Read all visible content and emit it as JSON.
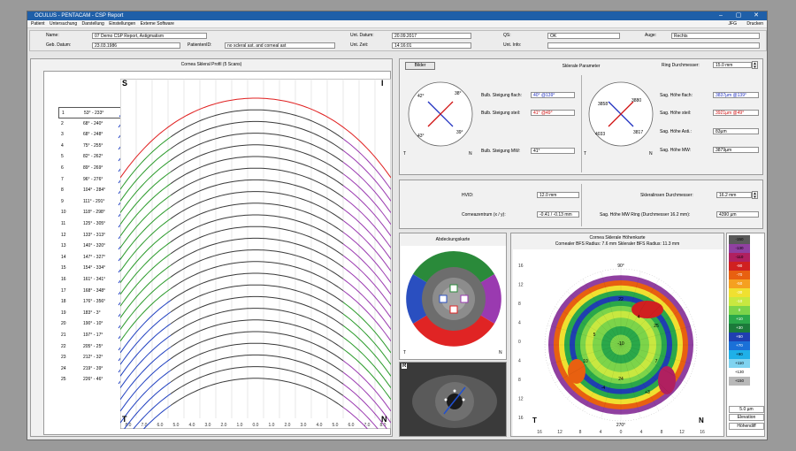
{
  "title": "OCULUS - PENTACAM - CSP Report",
  "menu": [
    "Patient",
    "Untersuchung",
    "Darstellung",
    "Einstellungen",
    "Externe Software"
  ],
  "menu_right": [
    "JFG",
    "Drucken"
  ],
  "patient": {
    "name_label": "Name:",
    "name": "07 Demo CSP Report, Astigmatism",
    "dob_label": "Geb. Datum:",
    "dob": "23.03.1986",
    "pid_label": "PatientenID:",
    "pid": "no scleral ast. and corneal ast",
    "date_label": "Unt. Datum:",
    "date": "20.09.2017",
    "time_label": "Unt. Zeit:",
    "time": "14:16:01",
    "qs_label": "QS:",
    "qs": "OK",
    "info_label": "Unt. Info:",
    "info": "",
    "eye_label": "Auge:",
    "eye": "Rechts"
  },
  "profile": {
    "title": "Cornea Skleral Profil (5 Scans)",
    "corner_tl": "S",
    "corner_tr": "I",
    "corner_bl": "T",
    "corner_br": "N",
    "scans": [
      {
        "n": "1",
        "a": "53° - 233°"
      },
      {
        "n": "2",
        "a": "68° - 240°"
      },
      {
        "n": "3",
        "a": "68° - 248°"
      },
      {
        "n": "4",
        "a": "75° - 255°"
      },
      {
        "n": "5",
        "a": "82° - 262°"
      },
      {
        "n": "6",
        "a": "89° - 269°"
      },
      {
        "n": "7",
        "a": "96° - 276°"
      },
      {
        "n": "8",
        "a": "104° - 284°"
      },
      {
        "n": "9",
        "a": "111° - 291°"
      },
      {
        "n": "10",
        "a": "118° - 298°"
      },
      {
        "n": "11",
        "a": "125° - 305°"
      },
      {
        "n": "12",
        "a": "133° - 313°"
      },
      {
        "n": "13",
        "a": "140° - 320°"
      },
      {
        "n": "14",
        "a": "147° - 327°"
      },
      {
        "n": "15",
        "a": "154° - 334°"
      },
      {
        "n": "16",
        "a": "161° - 341°"
      },
      {
        "n": "17",
        "a": "168° - 348°"
      },
      {
        "n": "18",
        "a": "176° - 356°"
      },
      {
        "n": "19",
        "a": "183° - 3°"
      },
      {
        "n": "20",
        "a": "190° - 10°"
      },
      {
        "n": "21",
        "a": "197° - 17°"
      },
      {
        "n": "22",
        "a": "205° - 25°"
      },
      {
        "n": "23",
        "a": "212° - 32°"
      },
      {
        "n": "24",
        "a": "219° - 39°"
      },
      {
        "n": "25",
        "a": "226° - 46°"
      }
    ],
    "xticks": [
      "8.0",
      "7.0",
      "6.0",
      "5.0",
      "4.0",
      "3.0",
      "2.0",
      "1.0",
      "0.0",
      "1.0",
      "2.0",
      "3.0",
      "4.0",
      "5.0",
      "6.0",
      "7.0",
      "8.0"
    ]
  },
  "scleral": {
    "button": "Bilder",
    "title": "Sklerale Parameter",
    "ring_label": "Ring Durchmesser:",
    "ring": "15.0 mm",
    "left_angles": {
      "a1": "42°",
      "a2": "38°",
      "a3": "43°",
      "a4": "39°",
      "t": "T",
      "n": "N"
    },
    "flat_label": "Bulb. Steigung flach:",
    "flat": "40° @139°",
    "steep_label": "Bulb. Steigung steil:",
    "steep": "41° @49°",
    "mw_label": "Bulb. Steigung MW:",
    "mw": "41°",
    "right_vals": {
      "v1": "3858",
      "v2": "3880",
      "v3": "4033",
      "v4": "3817",
      "t": "T",
      "n": "N"
    },
    "sag_flat_label": "Sag. Höhe flach:",
    "sag_flat": "3837µm @139°",
    "sag_steep_label": "Sag. Höhe steil:",
    "sag_steep": "3921µm @49°",
    "sag_asti_label": "Sag. Höhe Asti.:",
    "sag_asti": "83µm",
    "sag_mw_label": "Sag. Höhe MW:",
    "sag_mw": "3879µm"
  },
  "hvid": {
    "hvid_label": "HVID:",
    "hvid": "12.0 mm",
    "center_label": "Corneazentrum (x / y):",
    "center": "-0.41 / -0.13 mm",
    "lens_label": "Skleralinsen Durchmesser:",
    "lens": "16.2 mm",
    "sag_ring_label": "Sag. Höhe MW Ring (Durchmesser 16.2 mm):",
    "sag_ring": "4390 µm"
  },
  "coverage": {
    "title": "Abdeckungskarte",
    "t": "T",
    "n": "N"
  },
  "camera": {
    "badge": "R"
  },
  "heightmap": {
    "title": "Cornea Sklerale Höhenkarte",
    "subtitle": "Cornealer BFS Radius: 7.6 mm    Skleraler BFS Radius: 11.3 mm",
    "t": "T",
    "n": "N",
    "top": "90°",
    "bottom": "270°",
    "yticks": [
      "16",
      "12",
      "8",
      "4",
      "0",
      "4",
      "8",
      "12",
      "16"
    ],
    "xticks": [
      "16",
      "12",
      "8",
      "4",
      "0",
      "4",
      "8",
      "12",
      "16"
    ],
    "zone_values": [
      "22",
      "25",
      "5",
      "24",
      "7",
      "10",
      "-10",
      "4",
      "-4",
      "+3"
    ]
  },
  "colorscale": {
    "values": [
      "+150",
      "+130",
      "+110",
      "+90",
      "+70",
      "+50",
      "+30",
      "+10",
      "0",
      "-10",
      "-30",
      "-50",
      "-70",
      "-90",
      "-110",
      "-130",
      "-150"
    ],
    "colors": [
      "#b8b8b8",
      "#ffffff",
      "#7fd3f0",
      "#1fb0e8",
      "#1a70d8",
      "#1f3fb0",
      "#1b7a3a",
      "#2aa84a",
      "#7cd44a",
      "#c8e840",
      "#f0e030",
      "#f5a020",
      "#e86010",
      "#d02020",
      "#b02060",
      "#9040a0",
      "#5a5a5a"
    ],
    "step": "5.0 µm",
    "mode": "Elevation",
    "ref": "Höhendiff"
  }
}
